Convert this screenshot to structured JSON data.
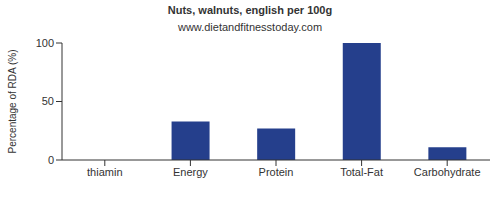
{
  "chart_data": {
    "type": "bar",
    "title": "Nuts, walnuts, english per 100g",
    "subtitle": "www.dietandfitnesstoday.com",
    "y_label": "Percentage of RDA (%)",
    "categories": [
      "thiamin",
      "Energy",
      "Protein",
      "Total-Fat",
      "Carbohydrate"
    ],
    "values": [
      0,
      33,
      27,
      100,
      11
    ],
    "color": "#253f8c",
    "ylim": [
      0,
      100
    ],
    "yticks": [
      0,
      50,
      100
    ],
    "grid": false
  }
}
